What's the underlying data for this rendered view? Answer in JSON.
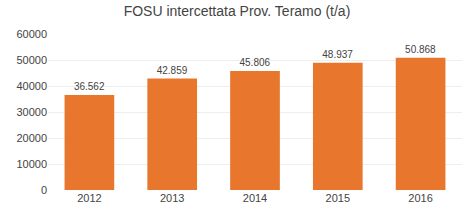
{
  "chart_data": {
    "type": "bar",
    "title": "FOSU intercettata Prov. Teramo (t/a)",
    "categories": [
      "2012",
      "2013",
      "2014",
      "2015",
      "2016"
    ],
    "values": [
      36562,
      42859,
      45806,
      48937,
      50868
    ],
    "value_labels": [
      "36.562",
      "42.859",
      "45.806",
      "48.937",
      "50.868"
    ],
    "data_labels": true,
    "color": "#E8762C",
    "ylim": [
      0,
      60000
    ],
    "yticks": [
      0,
      10000,
      20000,
      30000,
      40000,
      50000,
      60000
    ],
    "grid": true
  }
}
